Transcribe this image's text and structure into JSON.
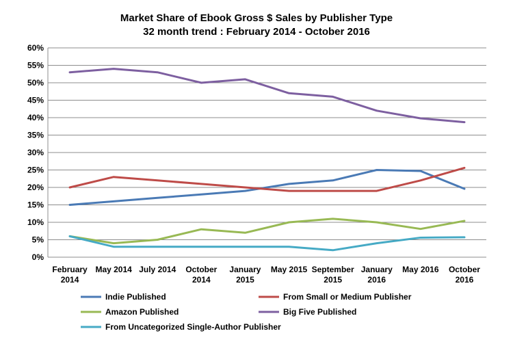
{
  "chart_data": {
    "type": "line",
    "title": "Market Share of Ebook Gross $ Sales by Publisher Type",
    "subtitle": "32 month trend : February 2014 - October 2016",
    "categories": [
      [
        "February",
        "2014"
      ],
      [
        "May 2014"
      ],
      [
        "July 2014"
      ],
      [
        "October",
        "2014"
      ],
      [
        "January",
        "2015"
      ],
      [
        "May 2015"
      ],
      [
        "September",
        "2015"
      ],
      [
        "January",
        "2016"
      ],
      [
        "May 2016"
      ],
      [
        "October",
        "2016"
      ]
    ],
    "ylim": [
      0,
      60
    ],
    "yticks": [
      "0%",
      "5%",
      "10%",
      "15%",
      "20%",
      "25%",
      "30%",
      "35%",
      "40%",
      "45%",
      "50%",
      "55%",
      "60%"
    ],
    "grid": true,
    "legend_position": "bottom",
    "series": [
      {
        "name": "Indie Published",
        "color": "#4a7ab5",
        "values": [
          15,
          16,
          17,
          18,
          19,
          21,
          22,
          25,
          24.7,
          19.6
        ]
      },
      {
        "name": "From Small or Medium Publisher",
        "color": "#be4b48",
        "values": [
          20,
          23,
          22,
          21,
          20,
          19,
          19,
          19,
          22,
          25.6
        ]
      },
      {
        "name": "Amazon Published",
        "color": "#98b954",
        "values": [
          6,
          4,
          5,
          8,
          7,
          10,
          11,
          10,
          8.1,
          10.4
        ]
      },
      {
        "name": "Big Five Published",
        "color": "#7d5fa0",
        "values": [
          53,
          54,
          53,
          50,
          51,
          47,
          46,
          42,
          39.8,
          38.7
        ]
      },
      {
        "name": "From Uncategorized Single-Author Publisher",
        "color": "#46aac5",
        "values": [
          6,
          3,
          3,
          3,
          3,
          3,
          2,
          4,
          5.6,
          5.7
        ]
      }
    ]
  }
}
